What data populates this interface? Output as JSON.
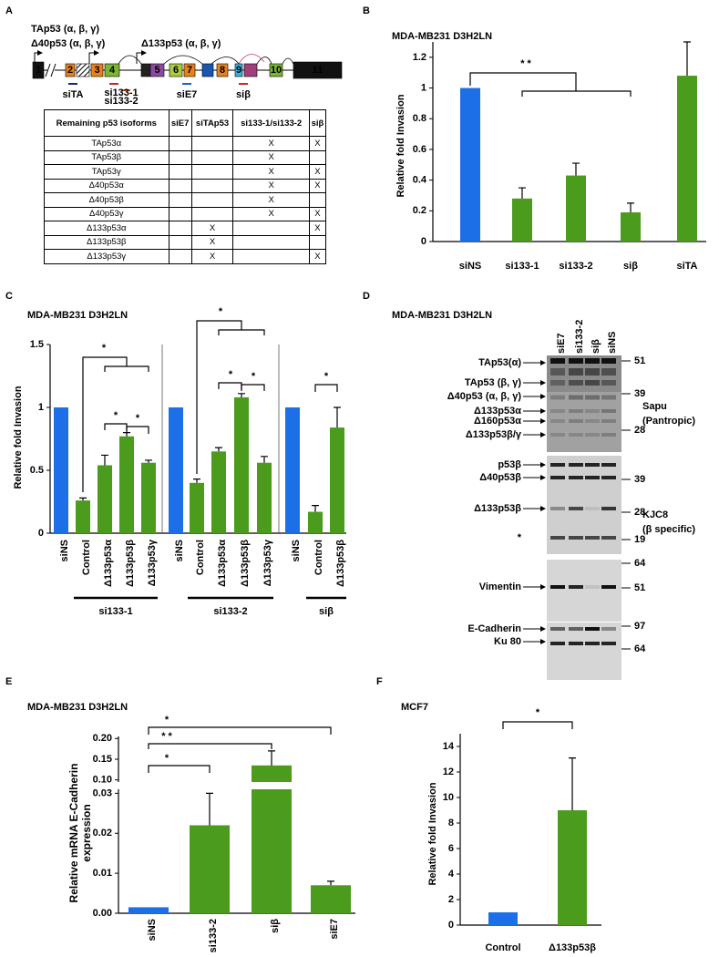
{
  "panel_labels": [
    "A",
    "B",
    "C",
    "D",
    "E",
    "F"
  ],
  "gene_diagram": {
    "isoforms": [
      "TAp53 (α, β, γ)",
      "Δ40p53 (α, β, γ)",
      "Δ133p53 (α, β, γ)"
    ],
    "exons": [
      "1",
      "2",
      "3",
      "4",
      "5",
      "6",
      "7",
      "8",
      "9",
      "10",
      "11"
    ],
    "sirnas": [
      "siTA",
      "si133-1",
      "si133-2",
      "siE7",
      "siβ"
    ]
  },
  "table": {
    "header": [
      "Remaining p53 isoforms",
      "siE7",
      "siTAp53",
      "si133-1/si133-2",
      "siβ"
    ],
    "rows": [
      [
        "TAp53α",
        null,
        null,
        "X",
        "X"
      ],
      [
        "TAp53β",
        null,
        null,
        "X",
        null
      ],
      [
        "TAp53γ",
        null,
        null,
        "X",
        "X"
      ],
      [
        "Δ40p53α",
        null,
        null,
        "X",
        "X"
      ],
      [
        "Δ40p53β",
        null,
        null,
        "X",
        null
      ],
      [
        "Δ40p53γ",
        null,
        null,
        "X",
        "X"
      ],
      [
        "Δ133p53α",
        null,
        "X",
        null,
        "X"
      ],
      [
        "Δ133p53β",
        null,
        "X",
        null,
        null
      ],
      [
        "Δ133p53γ",
        null,
        "X",
        null,
        "X"
      ]
    ]
  },
  "chart_data": [
    {
      "type": "bar",
      "title": "MDA-MB231 D3H2LN",
      "y_label": "Relative fold Invasion",
      "categories": [
        "siNS",
        "si133-1",
        "si133-2",
        "siβ",
        "siTA"
      ],
      "values": [
        1,
        0.28,
        0.43,
        0.19,
        1.08
      ],
      "errors": [
        null,
        0.07,
        0.08,
        0.06,
        0.22
      ],
      "colors": [
        "#1d6fe8",
        "#4b9b1d",
        "#4b9b1d",
        "#4b9b1d",
        "#4b9b1d"
      ],
      "ylim": [
        0,
        1.3
      ],
      "yticks": [
        0,
        0.2,
        0.4,
        0.6,
        0.8,
        1,
        1.2
      ],
      "annotations": [
        "* *"
      ]
    },
    {
      "type": "bar",
      "title": "MDA-MB231 D3H2LN",
      "y_label": "Relative fold Invasion",
      "ylim": [
        0,
        1.5
      ],
      "yticks": [
        0,
        0.5,
        1,
        1.5
      ],
      "groups": [
        {
          "name": "si133-1",
          "categories": [
            "siNS",
            "Control",
            "Δ133p53α",
            "Δ133p53β",
            "Δ133p53γ"
          ],
          "values": [
            1,
            0.26,
            0.54,
            0.77,
            0.56
          ],
          "errors": [
            null,
            0.02,
            0.08,
            0.03,
            0.02
          ],
          "colors": [
            "#1d6fe8",
            "#4b9b1d",
            "#4b9b1d",
            "#4b9b1d",
            "#4b9b1d"
          ],
          "annotations": [
            "*",
            "*",
            "*"
          ]
        },
        {
          "name": "si133-2",
          "categories": [
            "siNS",
            "Control",
            "Δ133p53α",
            "Δ133p53β",
            "Δ133p53γ"
          ],
          "values": [
            1,
            0.4,
            0.65,
            1.08,
            0.56
          ],
          "errors": [
            null,
            0.03,
            0.03,
            0.03,
            0.05
          ],
          "colors": [
            "#1d6fe8",
            "#4b9b1d",
            "#4b9b1d",
            "#4b9b1d",
            "#4b9b1d"
          ],
          "annotations": [
            "*",
            "*",
            "*"
          ]
        },
        {
          "name": "siβ",
          "categories": [
            "siNS",
            "Control",
            "Δ133p53β"
          ],
          "values": [
            1,
            0.17,
            0.84
          ],
          "errors": [
            null,
            0.05,
            0.16
          ],
          "colors": [
            "#1d6fe8",
            "#4b9b1d",
            "#4b9b1d"
          ],
          "annotations": [
            "*"
          ]
        }
      ]
    },
    {
      "type": "bar",
      "title": "MDA-MB231 D3H2LN",
      "y_label": "Relative mRNA E-Cadherin expression",
      "categories": [
        "siNS",
        "si133-2",
        "siβ",
        "siE7"
      ],
      "values": [
        0.0015,
        0.022,
        0.135,
        0.007
      ],
      "errors": [
        null,
        0.008,
        0.035,
        0.001
      ],
      "colors": [
        "#1d6fe8",
        "#4b9b1d",
        "#4b9b1d",
        "#4b9b1d"
      ],
      "ylim": [
        0,
        0.205
      ],
      "axis_break": [
        0.031,
        0.095
      ],
      "yticks": [
        {
          "value": 0,
          "label": "0.00"
        },
        0.01,
        0.02,
        0.03,
        {
          "value": 0.1,
          "label": "0.10"
        },
        0.15,
        {
          "value": 0.2,
          "label": "0.20"
        }
      ],
      "annotations": [
        "*",
        "* *",
        "*"
      ]
    },
    {
      "type": "bar",
      "title": "MCF7",
      "y_label": "Relative fold Invasion",
      "categories": [
        "Control",
        "Δ133p53β"
      ],
      "values": [
        1,
        9
      ],
      "errors": [
        null,
        4.1
      ],
      "colors": [
        "#1d6fe8",
        "#4b9b1d"
      ],
      "ylim": [
        0,
        15
      ],
      "yticks": [
        0,
        2,
        4,
        6,
        8,
        10,
        12,
        14
      ],
      "annotations": [
        "*"
      ]
    }
  ],
  "blot": {
    "title": "MDA-MB231 D3H2LN",
    "lanes": [
      "siE7",
      "si133-2",
      "siβ",
      "siNS"
    ],
    "bands": [
      "TAp53(α)",
      "TAp53 (β, γ)",
      "Δ40p53 (α, β, γ)",
      "Δ133p53α",
      "Δ160p53α",
      "Δ133p53β/γ",
      "p53β",
      "Δ40p53β",
      "Δ133p53β",
      "*",
      "Vimentin",
      "E-Cadherin",
      "Ku 80"
    ],
    "markers": [
      51,
      39,
      28,
      39,
      28,
      19,
      64,
      51,
      97,
      64
    ],
    "antibodies": [
      {
        "name": "Sapu",
        "specificity": "(Pantropic)"
      },
      {
        "name": "KJC8",
        "specificity": "(β specific)"
      }
    ]
  }
}
